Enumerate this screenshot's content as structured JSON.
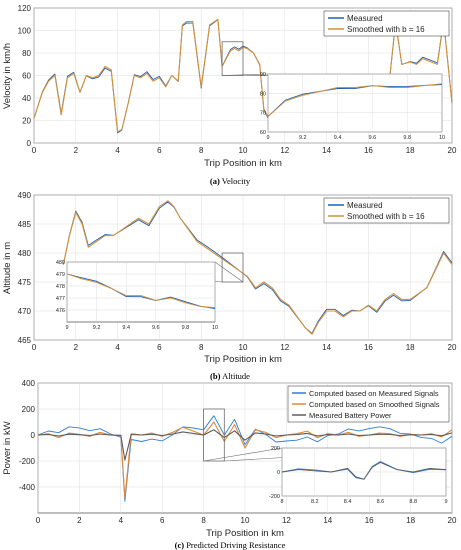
{
  "colors": {
    "measured": "#1f5fb0",
    "smoothed": "#d4913a",
    "computed_measured": "#2e7fd8",
    "computed_smoothed": "#e08a3c",
    "battery_power": "#5c5c5c"
  },
  "chart_data": [
    {
      "type": "line",
      "caption_label": "(a)",
      "caption_text": "Velocity",
      "xlabel": "Trip Position in km",
      "ylabel": "Velocity in km/h",
      "xlim": [
        0,
        20
      ],
      "ylim": [
        0,
        120
      ],
      "grid": true,
      "legend": "top-right",
      "xticks": [
        0,
        2,
        4,
        6,
        8,
        10,
        12,
        14,
        16,
        18,
        20
      ],
      "yticks": [
        0,
        20,
        40,
        60,
        80,
        100,
        120
      ],
      "series": [
        {
          "name": "Measured",
          "color": "#1f5fb0",
          "smooth": false
        },
        {
          "name": "Smoothed with b = 16",
          "color": "#d4913a",
          "smooth": true
        }
      ],
      "x": [
        0,
        0.4,
        0.7,
        1.0,
        1.3,
        1.6,
        1.9,
        2.2,
        2.5,
        2.8,
        3.1,
        3.4,
        3.7,
        4.0,
        4.2,
        4.5,
        4.8,
        5.1,
        5.4,
        5.7,
        6.0,
        6.3,
        6.6,
        6.9,
        7.1,
        7.3,
        7.6,
        8.0,
        8.4,
        8.8,
        9.0,
        9.2,
        9.4,
        9.6,
        9.8,
        10.0,
        10.2,
        10.5,
        10.8,
        11.0,
        11.3,
        11.6,
        12.0,
        12.3,
        12.7,
        13.0,
        13.3,
        13.6,
        14.0,
        14.3,
        14.6,
        15.0,
        15.3,
        15.6,
        16.0,
        16.3,
        16.6,
        17.0,
        17.3,
        17.6,
        18.0,
        18.3,
        18.6,
        19.0,
        19.3,
        19.6,
        20.0
      ],
      "y": [
        22,
        45,
        55,
        60,
        25,
        58,
        62,
        45,
        60,
        58,
        60,
        68,
        65,
        10,
        12,
        35,
        60,
        58,
        62,
        55,
        58,
        50,
        60,
        55,
        105,
        108,
        108,
        50,
        105,
        110,
        68,
        75,
        82,
        84,
        82,
        85,
        84,
        80,
        70,
        30,
        20,
        18,
        20,
        22,
        25,
        30,
        35,
        40,
        30,
        45,
        50,
        52,
        50,
        52,
        55,
        45,
        50,
        55,
        108,
        70,
        72,
        70,
        75,
        72,
        70,
        108,
        35
      ],
      "inset": {
        "xlim": [
          9,
          10
        ],
        "ylim": [
          60,
          90
        ],
        "xticks": [
          9,
          9.2,
          9.4,
          9.6,
          9.8,
          10
        ],
        "yticks": [
          60,
          70,
          80,
          90
        ],
        "x": [
          9.0,
          9.1,
          9.2,
          9.3,
          9.4,
          9.5,
          9.6,
          9.7,
          9.8,
          9.9,
          10.0
        ],
        "y": [
          68,
          76,
          79,
          81,
          83,
          83,
          84,
          83,
          83,
          84,
          85
        ]
      }
    },
    {
      "type": "line",
      "caption_label": "(b)",
      "caption_text": "Altitude",
      "xlabel": "Trip Position in km",
      "ylabel": "Altitude in m",
      "xlim": [
        0,
        20
      ],
      "ylim": [
        465,
        490
      ],
      "grid": true,
      "legend": "top-right",
      "xticks": [
        0,
        2,
        4,
        6,
        8,
        10,
        12,
        14,
        16,
        18,
        20
      ],
      "yticks": [
        465,
        470,
        475,
        480,
        485,
        490
      ],
      "series": [
        {
          "name": "Measured",
          "color": "#1f5fb0",
          "smooth": false
        },
        {
          "name": "Smoothed with b = 16",
          "color": "#d4913a",
          "smooth": true
        }
      ],
      "x": [
        1.4,
        1.7,
        2.0,
        2.3,
        2.6,
        3.0,
        3.4,
        3.8,
        4.2,
        4.6,
        5.0,
        5.5,
        6.0,
        6.4,
        6.7,
        7.0,
        7.4,
        7.8,
        8.2,
        8.6,
        9.0,
        9.4,
        9.8,
        10.2,
        10.6,
        11.0,
        11.4,
        11.8,
        12.2,
        12.6,
        13.0,
        13.3,
        13.6,
        14.0,
        14.4,
        14.8,
        15.2,
        15.6,
        16.0,
        16.4,
        16.8,
        17.2,
        17.6,
        18.0,
        18.4,
        18.8,
        19.2,
        19.6,
        20.0
      ],
      "y": [
        478,
        483,
        487,
        485,
        481,
        482,
        483,
        483,
        484,
        485,
        486,
        485,
        488,
        489,
        488,
        486,
        484,
        482,
        481,
        480,
        479,
        478,
        477,
        476,
        474,
        475,
        474,
        472,
        471,
        469,
        467,
        466,
        468,
        470,
        470,
        469,
        470,
        470,
        471,
        470,
        472,
        473,
        472,
        472,
        473,
        474,
        477,
        480,
        478
      ],
      "inset": {
        "xlim": [
          9,
          10
        ],
        "ylim": [
          475,
          480
        ],
        "xticks": [
          9,
          9.2,
          9.4,
          9.6,
          9.8,
          10
        ],
        "yticks": [
          476,
          477,
          478,
          479,
          480
        ],
        "x": [
          9.0,
          9.1,
          9.2,
          9.3,
          9.4,
          9.5,
          9.6,
          9.7,
          9.8,
          9.9,
          10.0
        ],
        "y": [
          479.0,
          478.6,
          478.3,
          477.8,
          477.2,
          477.2,
          476.8,
          477.0,
          476.6,
          476.3,
          476.2
        ]
      }
    },
    {
      "type": "line",
      "caption_label": "(c)",
      "caption_text": "Predicted Driving Resistance",
      "xlabel": "Trip Position in km",
      "ylabel": "Power in kW",
      "xlim": [
        0,
        20
      ],
      "ylim": [
        -600,
        400
      ],
      "grid": true,
      "legend": "top-right",
      "xticks": [
        0,
        2,
        4,
        6,
        8,
        10,
        12,
        14,
        16,
        18,
        20
      ],
      "yticks": [
        -400,
        -200,
        0,
        200,
        400
      ],
      "series": [
        {
          "name": "Computed based on Measured Signals",
          "color": "#2e7fd8",
          "smooth": false
        },
        {
          "name": "Computed based on Smoothed Signals",
          "color": "#e08a3c",
          "smooth": true
        },
        {
          "name": "Measured Battery Power",
          "color": "#5c5c5c",
          "smooth": true
        }
      ],
      "x": [
        0,
        0.5,
        1.0,
        1.5,
        2.0,
        2.5,
        3.0,
        3.5,
        4.0,
        4.2,
        4.5,
        5.0,
        5.5,
        6.0,
        6.5,
        7.0,
        7.5,
        8.0,
        8.5,
        9.0,
        9.5,
        10.0,
        10.5,
        11.0,
        11.5,
        12.0,
        12.5,
        13.0,
        13.5,
        14.0,
        14.5,
        15.0,
        15.5,
        16.0,
        16.5,
        17.0,
        17.5,
        18.0,
        18.5,
        19.0,
        19.5,
        20.0
      ],
      "y": [
        0,
        10,
        -20,
        15,
        5,
        -10,
        20,
        0,
        -5,
        -480,
        10,
        0,
        15,
        -10,
        20,
        60,
        30,
        0,
        100,
        -50,
        80,
        -100,
        40,
        20,
        -20,
        0,
        10,
        30,
        -20,
        10,
        0,
        20,
        -10,
        0,
        15,
        10,
        -10,
        5,
        0,
        10,
        -15,
        40
      ],
      "inset": {
        "xlim": [
          8,
          9
        ],
        "ylim": [
          -200,
          200
        ],
        "xticks": [
          8,
          8.2,
          8.4,
          8.6,
          8.8,
          9
        ],
        "yticks": [
          -200,
          0,
          200
        ],
        "x": [
          8.0,
          8.1,
          8.2,
          8.3,
          8.4,
          8.45,
          8.5,
          8.55,
          8.6,
          8.7,
          8.8,
          8.9,
          9.0
        ],
        "y": [
          0,
          20,
          10,
          0,
          30,
          -40,
          -60,
          40,
          80,
          20,
          0,
          30,
          20
        ]
      }
    }
  ]
}
